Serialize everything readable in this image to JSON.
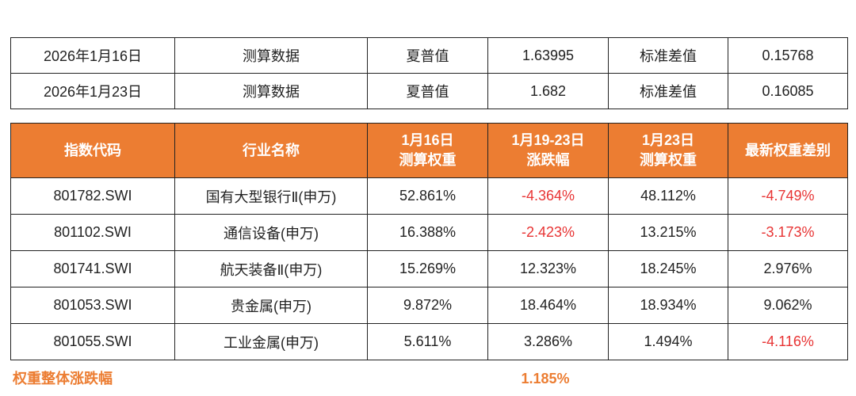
{
  "summary": [
    {
      "date": "2026年1月16日",
      "type": "测算数据",
      "sharpe_label": "夏普值",
      "sharpe_value": "1.63995",
      "std_label": "标准差值",
      "std_value": "0.15768"
    },
    {
      "date": "2026年1月23日",
      "type": "测算数据",
      "sharpe_label": "夏普值",
      "sharpe_value": "1.682",
      "std_label": "标准差值",
      "std_value": "0.16085"
    }
  ],
  "weights": {
    "header": {
      "code": "指数代码",
      "industry": "行业名称",
      "w1_line1": "1月16日",
      "w1_line2": "测算权重",
      "chg_line1": "1月19-23日",
      "chg_line2": "涨跌幅",
      "w2_line1": "1月23日",
      "w2_line2": "测算权重",
      "diff": "最新权重差别"
    },
    "rows": [
      {
        "code": "801782.SWI",
        "industry": "国有大型银行Ⅱ(申万)",
        "w1": "52.861%",
        "chg": "-4.364%",
        "w2": "48.112%",
        "diff": "-4.749%"
      },
      {
        "code": "801102.SWI",
        "industry": "通信设备(申万)",
        "w1": "16.388%",
        "chg": "-2.423%",
        "w2": "13.215%",
        "diff": "-3.173%"
      },
      {
        "code": "801741.SWI",
        "industry": "航天装备Ⅱ(申万)",
        "w1": "15.269%",
        "chg": "12.323%",
        "w2": "18.245%",
        "diff": "2.976%"
      },
      {
        "code": "801053.SWI",
        "industry": "贵金属(申万)",
        "w1": "9.872%",
        "chg": "18.464%",
        "w2": "18.934%",
        "diff": "9.062%"
      },
      {
        "code": "801055.SWI",
        "industry": "工业金属(申万)",
        "w1": "5.611%",
        "chg": "3.286%",
        "w2": "1.494%",
        "diff": "-4.116%"
      }
    ]
  },
  "footer": {
    "label": "权重整体涨跌幅",
    "value": "1.185%"
  },
  "colors": {
    "header_bg": "#ec7d32",
    "negative": "#e83434",
    "footer_text": "#ec7d32"
  }
}
